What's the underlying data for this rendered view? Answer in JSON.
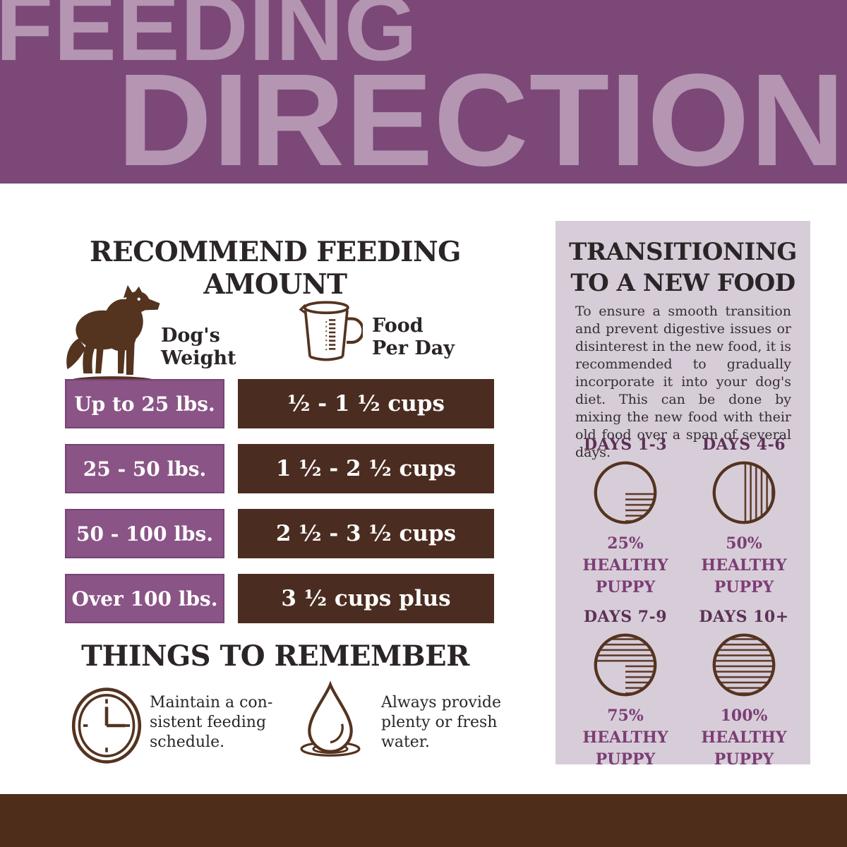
{
  "banner": {
    "line1": "FEEDING",
    "line2": "DIRECTIONS"
  },
  "feeding": {
    "title": "RECOMMEND FEEDING AMOUNT",
    "weight_column_label": "Dog's\nWeight",
    "food_column_label": "Food\nPer Day",
    "rows": [
      {
        "weight": "Up to 25 lbs.",
        "amount": "½ - 1 ½ cups"
      },
      {
        "weight": "25 - 50 lbs.",
        "amount": "1 ½ - 2 ½ cups"
      },
      {
        "weight": "50 - 100 lbs.",
        "amount": "2 ½ - 3 ½ cups"
      },
      {
        "weight": "Over 100 lbs.",
        "amount": "3 ½ cups plus"
      }
    ]
  },
  "remember": {
    "title": "THINGS TO REMEMBER",
    "items": [
      {
        "icon": "clock-icon",
        "text": "Maintain a con-\nsistent feeding\nschedule."
      },
      {
        "icon": "water-drop-icon",
        "text": "Always provide\nplenty or fresh\nwater."
      }
    ]
  },
  "transition": {
    "title_line1": "TRANSITIONING",
    "title_line2": "TO A NEW FOOD",
    "body": "To ensure a smooth transition and prevent digestive issues or disinterest in the new food, it is recommended to gradually incorporate it into your dog's diet. This can be done by mixing the new food with their old food over a span of several days.",
    "stages": [
      {
        "days": "DAYS 1-3",
        "percent": 25,
        "percent_label": "25%",
        "caption": "HEALTHY\nPUPPY",
        "hatch": "h"
      },
      {
        "days": "DAYS 4-6",
        "percent": 50,
        "percent_label": "50%",
        "caption": "HEALTHY\nPUPPY",
        "hatch": "v"
      },
      {
        "days": "DAYS 7-9",
        "percent": 75,
        "percent_label": "75%",
        "caption": "HEALTHY\nPUPPY",
        "hatch": "h"
      },
      {
        "days": "DAYS 10+",
        "percent": 100,
        "percent_label": "100%",
        "caption": "HEALTHY\nPUPPY",
        "hatch": "h"
      }
    ]
  },
  "colors": {
    "banner_bg": "#7b4877",
    "banner_text": "#b495b2",
    "ink": "#2b2527",
    "box_purple": "#8a5486",
    "box_brown": "#4b2c20",
    "panel_bg": "#d7cdd9",
    "accent_purple": "#7c3e74",
    "days_label": "#5c3156",
    "illus_brown": "#54331f",
    "footer_brown": "#4f2d1b"
  }
}
